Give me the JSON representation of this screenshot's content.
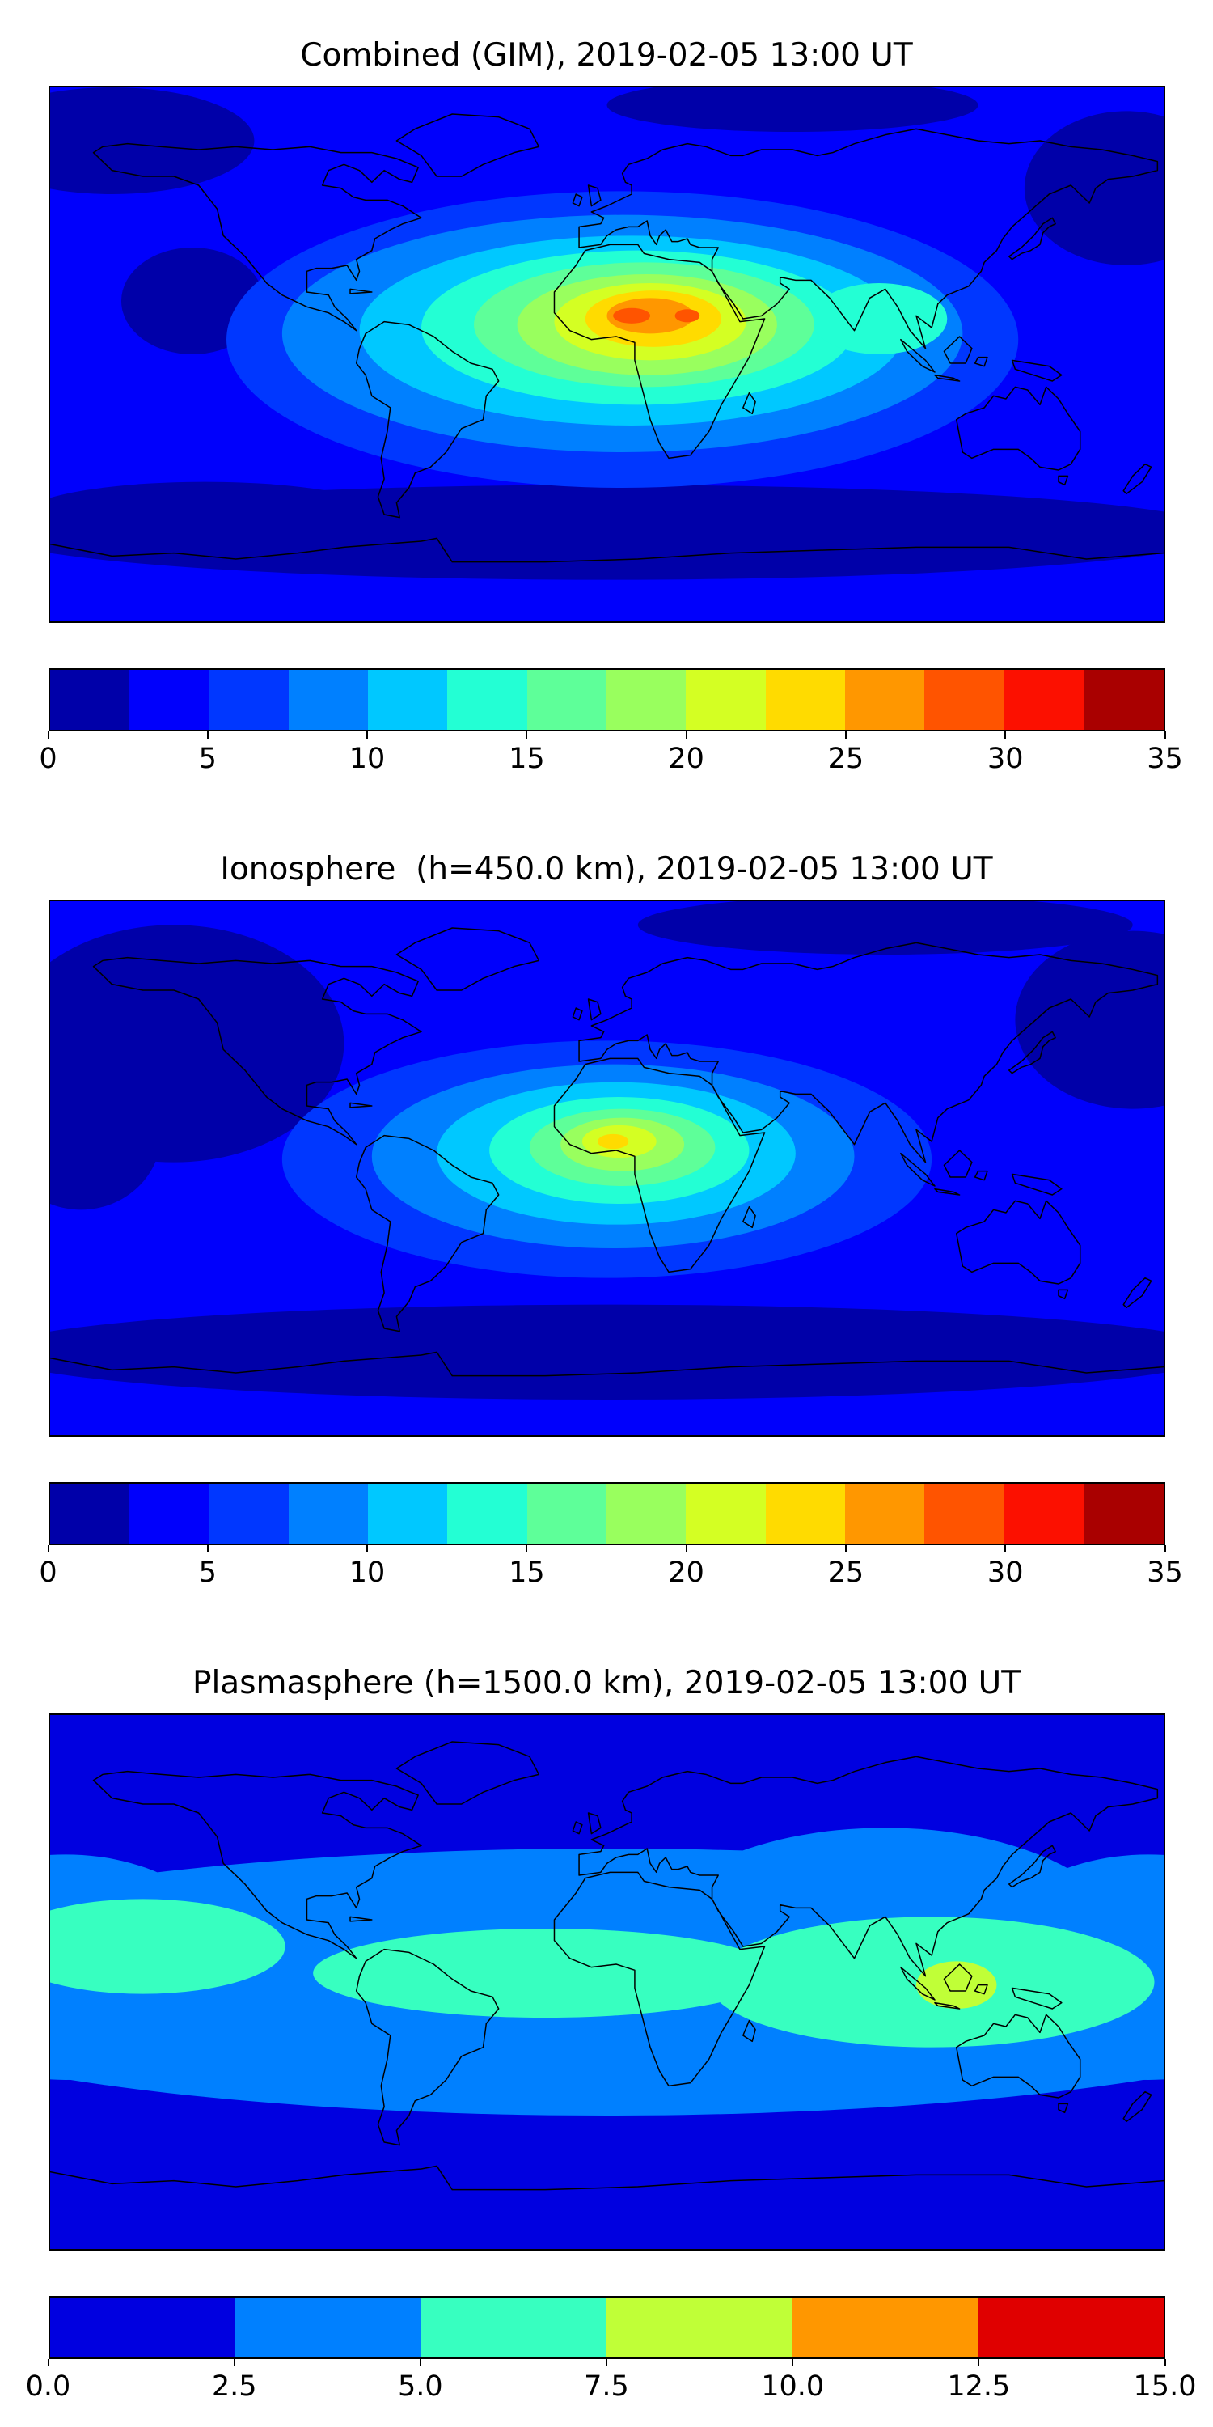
{
  "figure": {
    "background_color": "#ffffff",
    "panel_count": 3,
    "time_label": "2019-02-05 13:00 UT"
  },
  "chart_data": [
    {
      "type": "heatmap",
      "subtype": "filled-contour-world-map",
      "title": "Combined (GIM), 2019-02-05 13:00 UT",
      "projection": "equirectangular",
      "lon_range": [
        -180,
        180
      ],
      "lat_range": [
        -90,
        90
      ],
      "value_range": [
        0,
        35
      ],
      "contour_step": 2.5,
      "colormap": "jet",
      "legend_position": "bottom-colorbar",
      "grid": false,
      "band_colors": [
        "#0000A9",
        "#0000FC",
        "#0037FF",
        "#0080FF",
        "#00C8FF",
        "#23FFD4",
        "#5EFF99",
        "#99FF5E",
        "#D4FF23",
        "#FFDB00",
        "#FF9700",
        "#FF5400",
        "#FC1000",
        "#A90000"
      ],
      "colorbar_ticks": [
        "0",
        "5",
        "10",
        "15",
        "20",
        "25",
        "30",
        "35"
      ],
      "background_band": 1,
      "peak_value": 33,
      "peak_lon": 18,
      "peak_lat": 13,
      "layers": [
        {
          "band": 0,
          "lon": -160,
          "lat": 72,
          "rx": 46,
          "ry": 18
        },
        {
          "band": 0,
          "lon": -134,
          "lat": 18,
          "rx": 23,
          "ry": 18
        },
        {
          "band": 0,
          "lon": 168,
          "lat": 56,
          "rx": 33,
          "ry": 26
        },
        {
          "band": 0,
          "lon": 60,
          "lat": 84,
          "rx": 60,
          "ry": 9
        },
        {
          "band": 0,
          "lon": 0,
          "lat": -60,
          "rx": 200,
          "ry": 16
        },
        {
          "band": 0,
          "lon": -130,
          "lat": -55,
          "rx": 60,
          "ry": 12
        },
        {
          "band": 1,
          "lon": 0,
          "lat": -86,
          "rx": 200,
          "ry": 7
        },
        {
          "band": 2,
          "lon": 5,
          "lat": 5,
          "rx": 128,
          "ry": 50
        },
        {
          "band": 3,
          "lon": 5,
          "lat": 7,
          "rx": 110,
          "ry": 40
        },
        {
          "band": 4,
          "lon": 8,
          "lat": 8,
          "rx": 88,
          "ry": 32
        },
        {
          "band": 5,
          "lon": 10,
          "lat": 9,
          "rx": 70,
          "ry": 26
        },
        {
          "band": 5,
          "lon": 88,
          "lat": 12,
          "rx": 22,
          "ry": 12
        },
        {
          "band": 6,
          "lon": 12,
          "lat": 10,
          "rx": 55,
          "ry": 21
        },
        {
          "band": 7,
          "lon": 13,
          "lat": 10,
          "rx": 42,
          "ry": 17
        },
        {
          "band": 8,
          "lon": 14,
          "lat": 11,
          "rx": 31,
          "ry": 13
        },
        {
          "band": 9,
          "lon": 15,
          "lat": 12,
          "rx": 22,
          "ry": 9.5
        },
        {
          "band": 10,
          "lon": 14,
          "lat": 13,
          "rx": 14,
          "ry": 6
        },
        {
          "band": 11,
          "lon": 8,
          "lat": 13,
          "rx": 6,
          "ry": 2.6
        },
        {
          "band": 11,
          "lon": 26,
          "lat": 13,
          "rx": 4,
          "ry": 2.2
        }
      ]
    },
    {
      "type": "heatmap",
      "subtype": "filled-contour-world-map",
      "title": "Ionosphere  (h=450.0 km), 2019-02-05 13:00 UT",
      "projection": "equirectangular",
      "lon_range": [
        -180,
        180
      ],
      "lat_range": [
        -90,
        90
      ],
      "value_range": [
        0,
        35
      ],
      "contour_step": 2.5,
      "colormap": "jet",
      "legend_position": "bottom-colorbar",
      "grid": false,
      "band_colors": [
        "#0000A9",
        "#0000FC",
        "#0037FF",
        "#0080FF",
        "#00C8FF",
        "#23FFD4",
        "#5EFF99",
        "#99FF5E",
        "#D4FF23",
        "#FFDB00",
        "#FF9700",
        "#FF5400",
        "#FC1000",
        "#A90000"
      ],
      "colorbar_ticks": [
        "0",
        "5",
        "10",
        "15",
        "20",
        "25",
        "30",
        "35"
      ],
      "background_band": 1,
      "peak_value": 22,
      "peak_lon": 3,
      "peak_lat": 9,
      "layers": [
        {
          "band": 0,
          "lon": -140,
          "lat": 42,
          "rx": 55,
          "ry": 40
        },
        {
          "band": 0,
          "lon": -170,
          "lat": 12,
          "rx": 26,
          "ry": 26
        },
        {
          "band": 0,
          "lon": 170,
          "lat": 50,
          "rx": 38,
          "ry": 30
        },
        {
          "band": 0,
          "lon": 90,
          "lat": 82,
          "rx": 80,
          "ry": 10
        },
        {
          "band": 0,
          "lon": 0,
          "lat": -62,
          "rx": 200,
          "ry": 16
        },
        {
          "band": 1,
          "lon": 0,
          "lat": -86,
          "rx": 200,
          "ry": 6
        },
        {
          "band": 2,
          "lon": 0,
          "lat": 3,
          "rx": 105,
          "ry": 40
        },
        {
          "band": 3,
          "lon": 2,
          "lat": 4,
          "rx": 78,
          "ry": 31
        },
        {
          "band": 4,
          "lon": 3,
          "lat": 5,
          "rx": 58,
          "ry": 24
        },
        {
          "band": 5,
          "lon": 4,
          "lat": 6,
          "rx": 42,
          "ry": 18
        },
        {
          "band": 6,
          "lon": 5,
          "lat": 7,
          "rx": 30,
          "ry": 13
        },
        {
          "band": 7,
          "lon": 5,
          "lat": 8,
          "rx": 20,
          "ry": 9
        },
        {
          "band": 8,
          "lon": 4,
          "lat": 9,
          "rx": 12,
          "ry": 5.5
        },
        {
          "band": 9,
          "lon": 2,
          "lat": 9,
          "rx": 5,
          "ry": 2.5
        }
      ]
    },
    {
      "type": "heatmap",
      "subtype": "filled-contour-world-map",
      "title": "Plasmasphere (h=1500.0 km), 2019-02-05 13:00 UT",
      "projection": "equirectangular",
      "lon_range": [
        -180,
        180
      ],
      "lat_range": [
        -90,
        90
      ],
      "value_range": [
        0,
        15
      ],
      "contour_step": 2.5,
      "colormap": "jet",
      "legend_position": "bottom-colorbar",
      "grid": false,
      "band_colors": [
        "#0000E0",
        "#0080FF",
        "#37FFC0",
        "#C0FF37",
        "#FF9700",
        "#E00000"
      ],
      "colorbar_ticks": [
        "0.0",
        "2.5",
        "5.0",
        "7.5",
        "10.0",
        "12.5",
        "15.0"
      ],
      "background_band": 0,
      "peak_value": 10.5,
      "peak_lon": 113,
      "peak_lat": 0,
      "layers": [
        {
          "band": 1,
          "lon": 0,
          "lat": 0,
          "rx": 255,
          "ry": 45
        },
        {
          "band": 1,
          "lon": -175,
          "lat": 5,
          "rx": 55,
          "ry": 38
        },
        {
          "band": 1,
          "lon": 175,
          "lat": 5,
          "rx": 55,
          "ry": 38
        },
        {
          "band": 1,
          "lon": 90,
          "lat": 10,
          "rx": 80,
          "ry": 42
        },
        {
          "band": 2,
          "lon": -150,
          "lat": 12,
          "rx": 46,
          "ry": 16
        },
        {
          "band": 2,
          "lon": -20,
          "lat": 3,
          "rx": 75,
          "ry": 15
        },
        {
          "band": 2,
          "lon": 105,
          "lat": 0,
          "rx": 72,
          "ry": 22
        },
        {
          "band": 3,
          "lon": 113,
          "lat": -1,
          "rx": 13,
          "ry": 8
        }
      ]
    }
  ]
}
